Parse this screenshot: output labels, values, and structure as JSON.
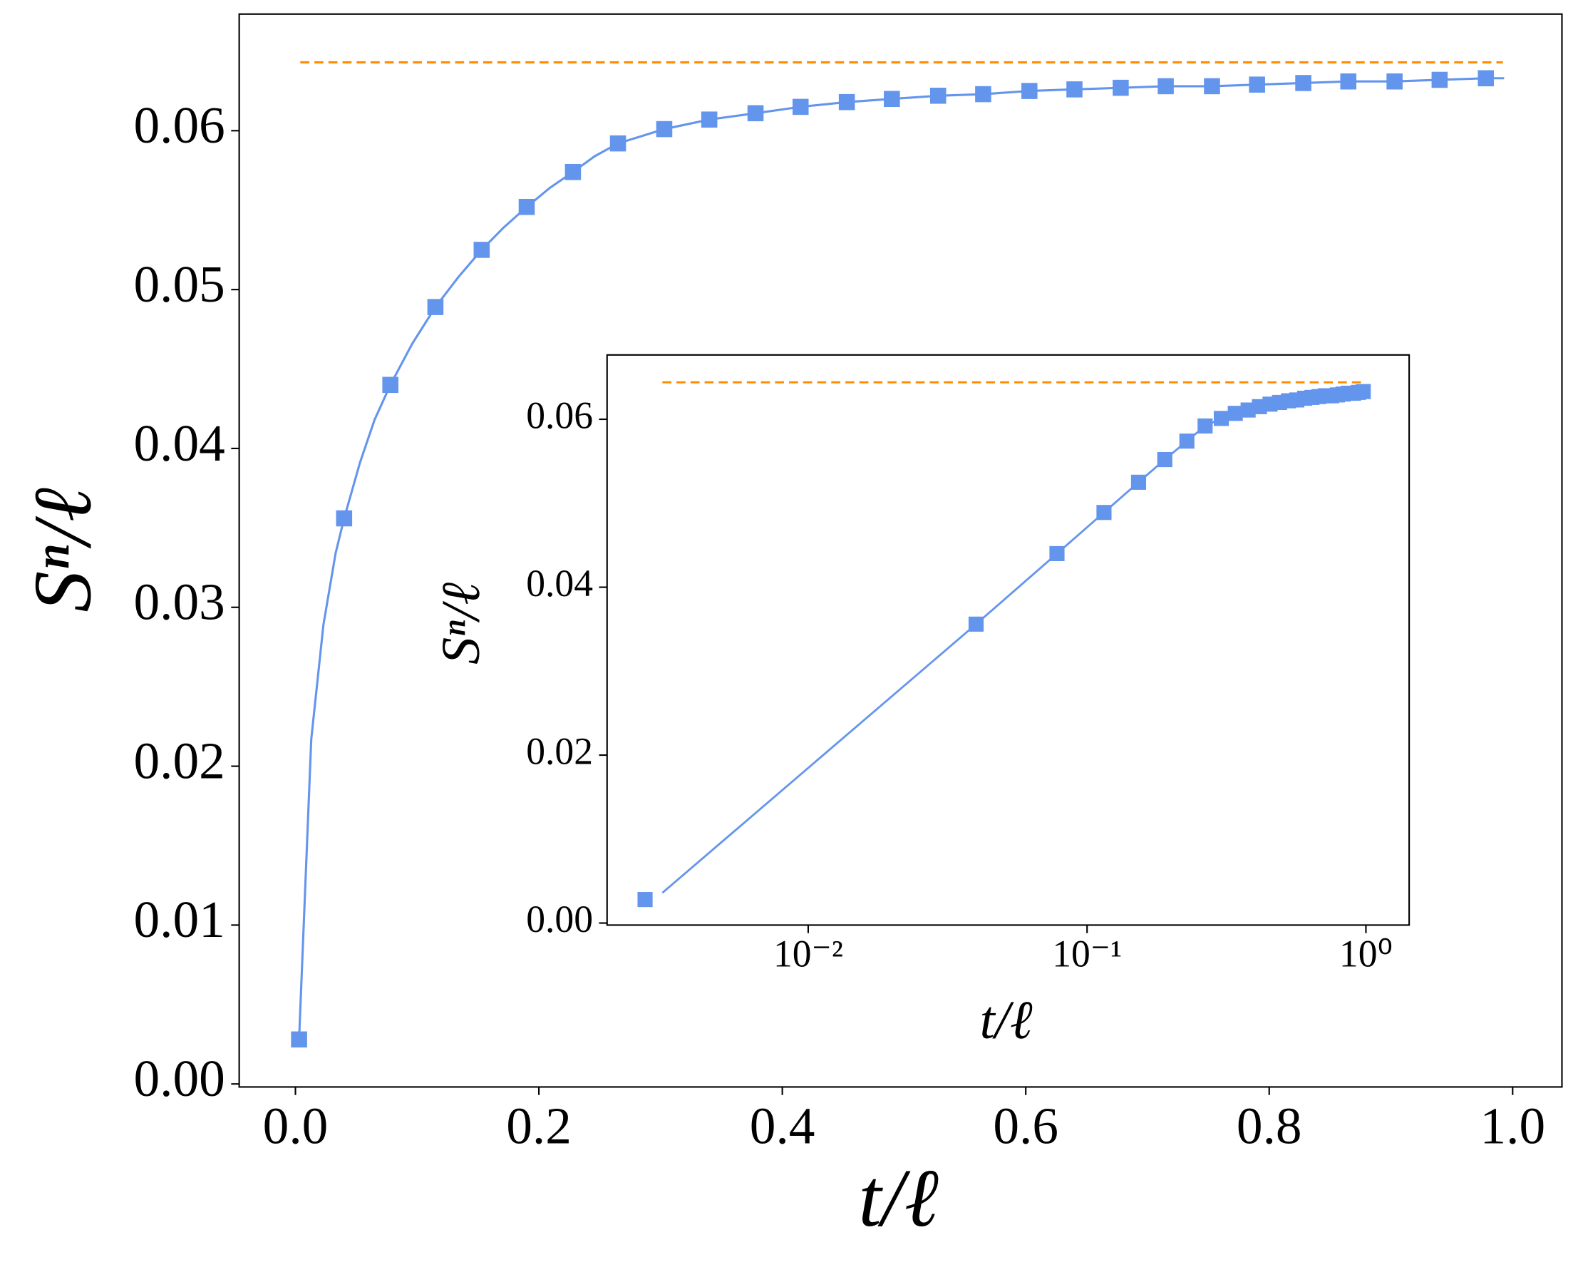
{
  "chart_data": [
    {
      "type": "line",
      "xlabel": "t/ℓ",
      "ylabel": "Sⁿ/ℓ",
      "xlim": [
        -0.0462,
        1.0405
      ],
      "ylim": [
        -0.00019,
        0.06734
      ],
      "xticks": [
        {
          "value": 0.0,
          "label": "0.0"
        },
        0.2,
        0.4,
        0.6,
        0.8,
        {
          "value": 1.0,
          "label": "1.0"
        }
      ],
      "yticks": [
        {
          "value": 0.0,
          "label": "0.00"
        },
        0.01,
        0.02,
        0.03,
        0.04,
        0.05,
        0.06
      ],
      "series": [
        {
          "style": "line",
          "color": "#6495ed",
          "x": [
            0.003,
            0.013,
            0.023,
            0.033,
            0.04,
            0.053,
            0.065,
            0.078,
            0.096,
            0.115,
            0.134,
            0.153,
            0.171,
            0.19,
            0.209,
            0.228,
            0.246,
            0.265,
            0.303,
            0.34,
            0.378,
            0.415,
            0.453,
            0.49,
            0.528,
            0.565,
            0.603,
            0.64,
            0.678,
            0.715,
            0.753,
            0.79,
            0.828,
            0.865,
            0.903,
            0.94,
            0.978,
            0.993
          ],
          "values": [
            0.0028,
            0.0217,
            0.0289,
            0.0334,
            0.0356,
            0.0391,
            0.0418,
            0.044,
            0.0466,
            0.0489,
            0.0508,
            0.0525,
            0.0539,
            0.0552,
            0.0564,
            0.0574,
            0.0584,
            0.0592,
            0.0601,
            0.0607,
            0.0611,
            0.0615,
            0.0618,
            0.062,
            0.0622,
            0.0623,
            0.0625,
            0.0626,
            0.0627,
            0.0628,
            0.0628,
            0.0629,
            0.063,
            0.0631,
            0.0631,
            0.0632,
            0.0633,
            0.0633
          ]
        },
        {
          "style": "markers",
          "color": "#6495ed",
          "x": [
            0.003,
            0.04,
            0.078,
            0.115,
            0.153,
            0.19,
            0.228,
            0.265,
            0.303,
            0.34,
            0.378,
            0.415,
            0.453,
            0.49,
            0.528,
            0.565,
            0.603,
            0.64,
            0.678,
            0.715,
            0.753,
            0.79,
            0.828,
            0.865,
            0.903,
            0.94,
            0.978
          ],
          "values": [
            0.0028,
            0.0356,
            0.044,
            0.0489,
            0.0525,
            0.0552,
            0.0574,
            0.0592,
            0.0601,
            0.0607,
            0.0611,
            0.0615,
            0.0618,
            0.062,
            0.0622,
            0.0623,
            0.0625,
            0.0626,
            0.0627,
            0.0628,
            0.0628,
            0.0629,
            0.063,
            0.0631,
            0.0631,
            0.0632,
            0.0633
          ]
        },
        {
          "style": "dashed",
          "color": "#ff8c00",
          "x": [
            0.004,
            0.992
          ],
          "values": [
            0.0643,
            0.0643
          ]
        }
      ]
    },
    {
      "type": "line",
      "xscale": "log",
      "xlabel": "t/ℓ",
      "ylabel": "Sⁿ/ℓ",
      "xlim": [
        0.0019,
        1.429
      ],
      "ylim": [
        -0.00024,
        0.06766
      ],
      "xticks": [
        {
          "value": 0.01,
          "label": "10⁻²"
        },
        {
          "value": 0.1,
          "label": "10⁻¹"
        },
        {
          "value": 1,
          "label": "10⁰"
        }
      ],
      "yticks": [
        {
          "value": 0.0,
          "label": "0.00"
        },
        {
          "value": 0.02,
          "label": "0.02"
        },
        {
          "value": 0.04,
          "label": "0.04"
        },
        0.06
      ],
      "series": [
        {
          "style": "line",
          "color": "#6495ed",
          "x": [
            0.003,
            0.04,
            0.078,
            0.115,
            0.153,
            0.19,
            0.228,
            0.265,
            0.303,
            0.34,
            0.378,
            0.415,
            0.453,
            0.49,
            0.528,
            0.565,
            0.603,
            0.64,
            0.678,
            0.715,
            0.753,
            0.79,
            0.828,
            0.865,
            0.903,
            0.94,
            0.978,
            1.0
          ],
          "values": [
            0.0036,
            0.0356,
            0.044,
            0.0489,
            0.0525,
            0.0552,
            0.0574,
            0.0592,
            0.0601,
            0.0607,
            0.0611,
            0.0615,
            0.0618,
            0.062,
            0.0622,
            0.0623,
            0.0625,
            0.0626,
            0.0627,
            0.0628,
            0.0628,
            0.0629,
            0.063,
            0.0631,
            0.0631,
            0.0632,
            0.0633,
            0.0633
          ]
        },
        {
          "style": "markers",
          "color": "#6495ed",
          "x": [
            0.0026,
            0.04,
            0.078,
            0.115,
            0.153,
            0.19,
            0.228,
            0.265,
            0.303,
            0.34,
            0.378,
            0.415,
            0.453,
            0.49,
            0.528,
            0.565,
            0.603,
            0.64,
            0.678,
            0.715,
            0.753,
            0.79,
            0.828,
            0.865,
            0.903,
            0.94,
            0.978
          ],
          "values": [
            0.0028,
            0.0356,
            0.044,
            0.0489,
            0.0525,
            0.0552,
            0.0574,
            0.0592,
            0.0601,
            0.0607,
            0.0611,
            0.0615,
            0.0618,
            0.062,
            0.0622,
            0.0623,
            0.0625,
            0.0626,
            0.0627,
            0.0628,
            0.0628,
            0.0629,
            0.063,
            0.0631,
            0.0631,
            0.0632,
            0.0633
          ]
        },
        {
          "style": "dashed",
          "color": "#ff8c00",
          "x": [
            0.003,
            1.0
          ],
          "values": [
            0.0644,
            0.0644
          ]
        }
      ]
    }
  ]
}
